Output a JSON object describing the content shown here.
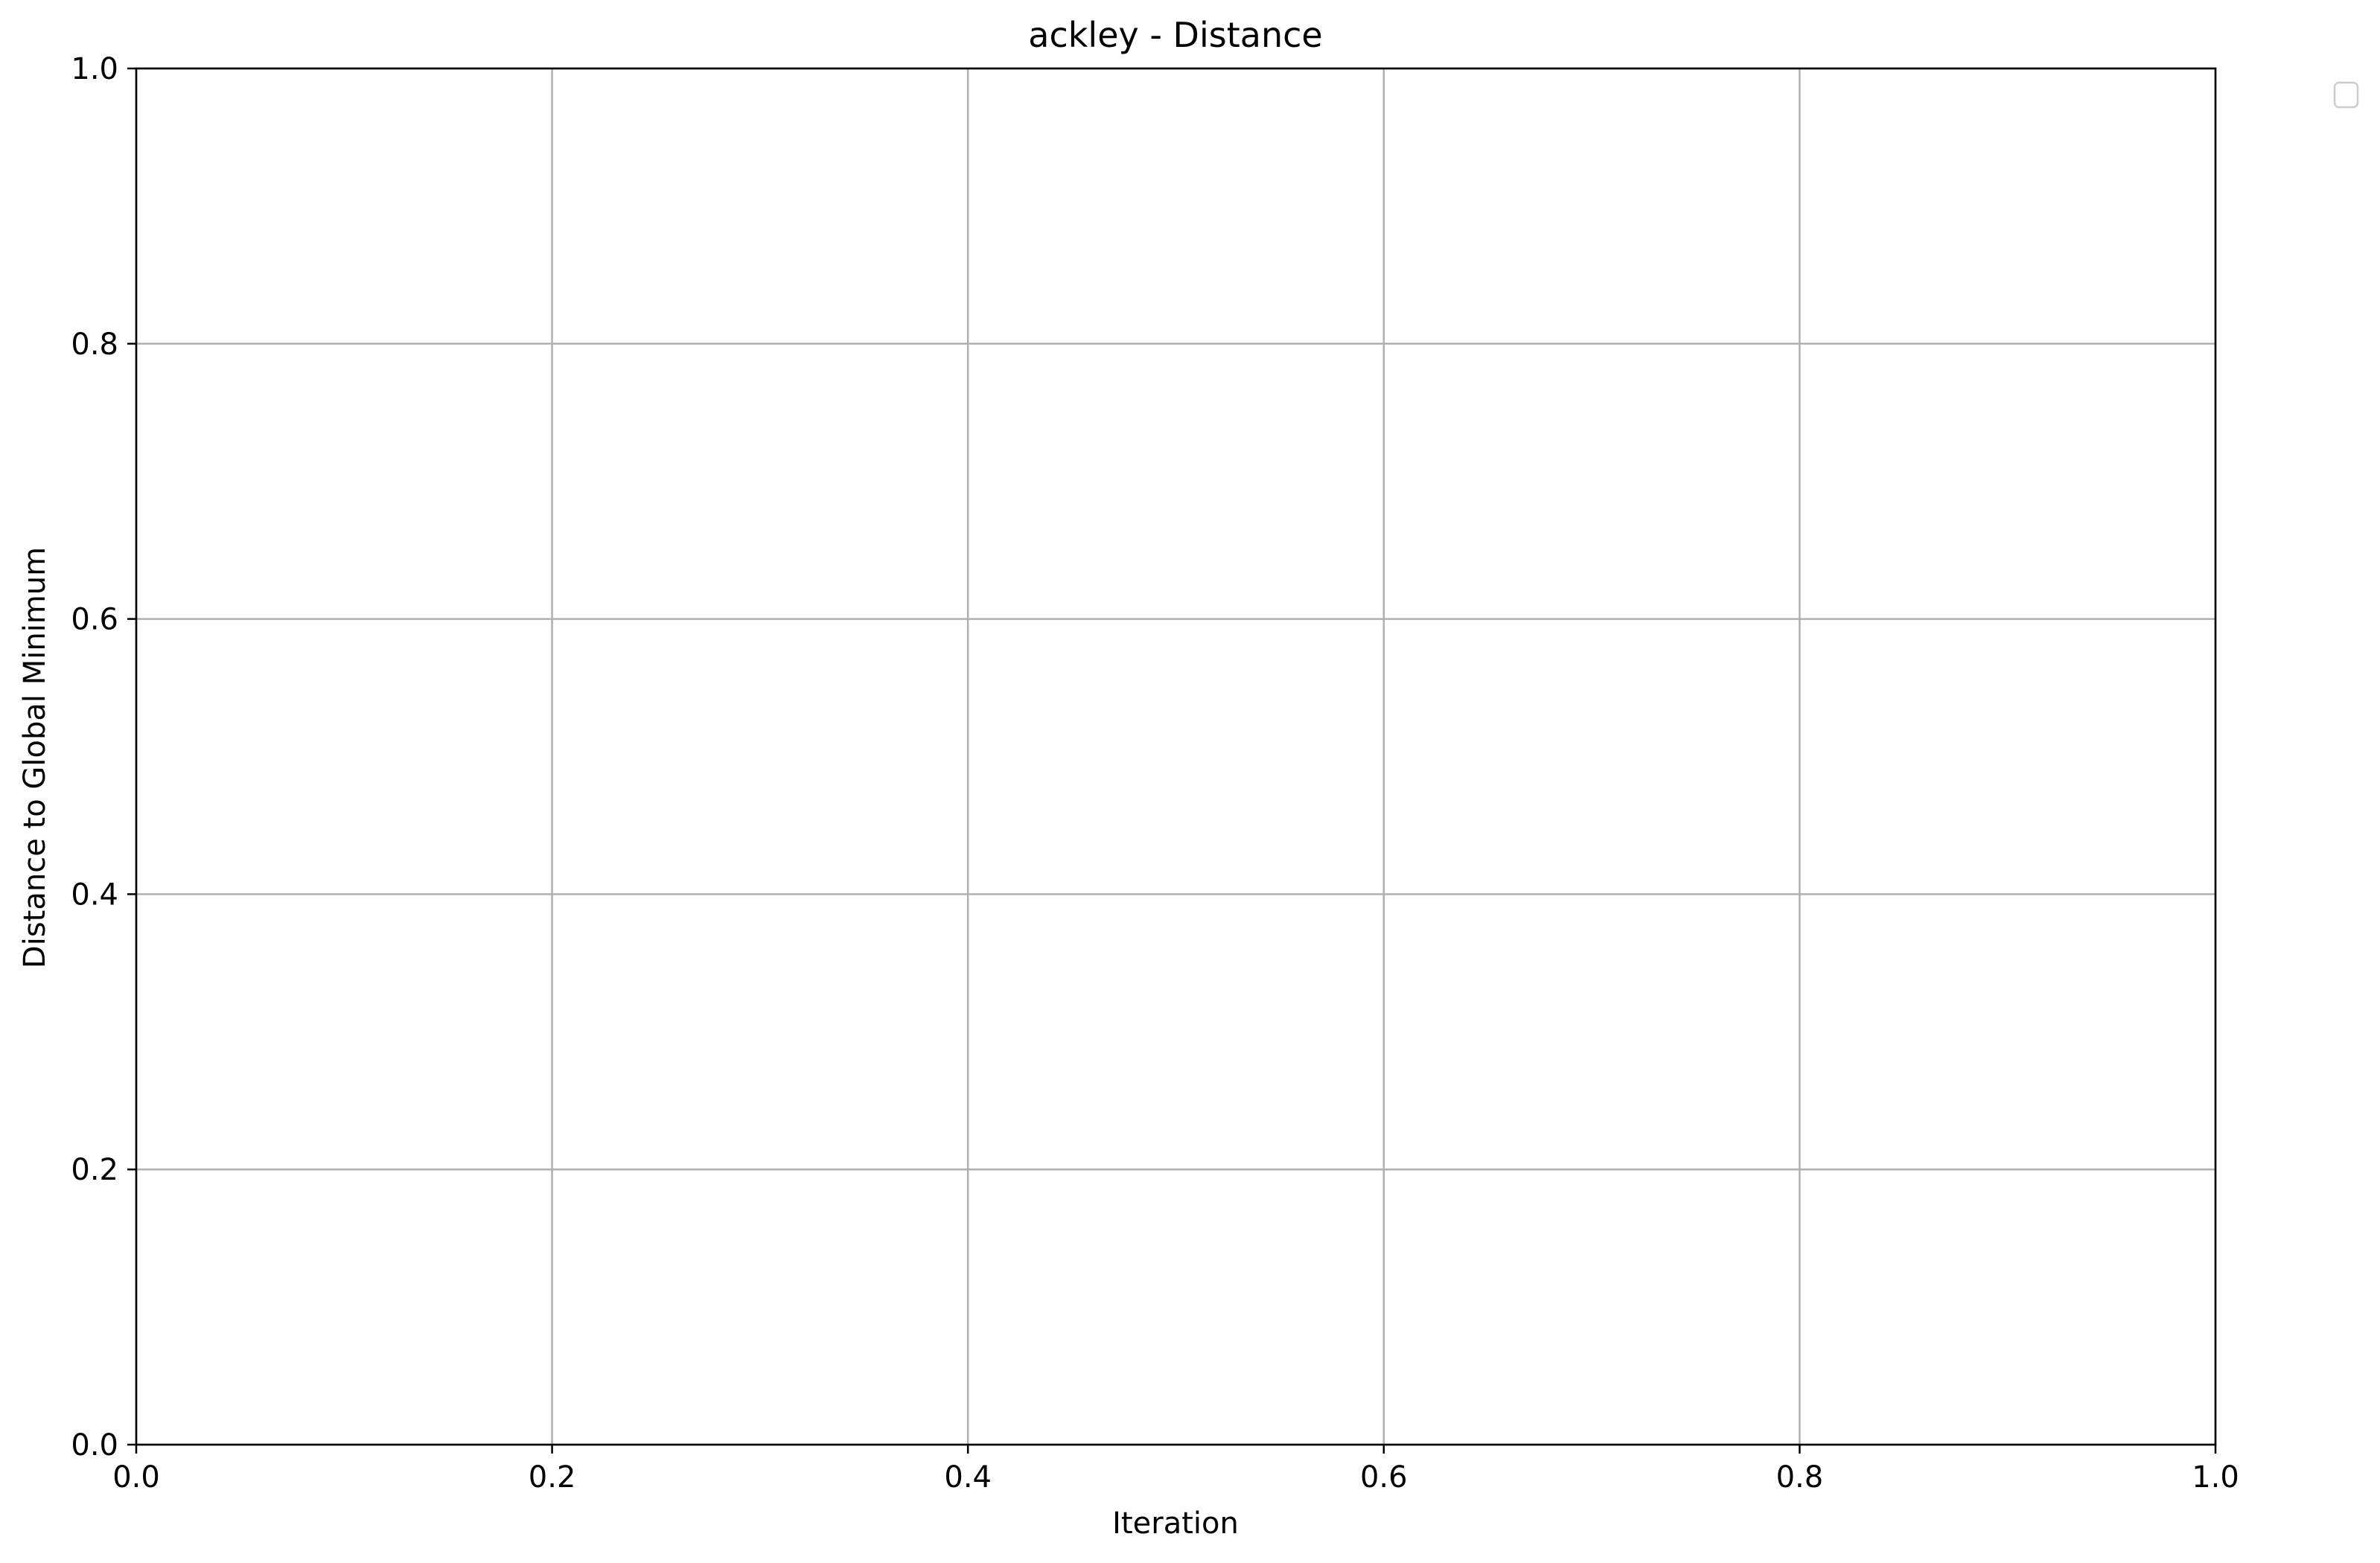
{
  "chart_data": {
    "type": "line",
    "title": "ackley - Distance",
    "xlabel": "Iteration",
    "ylabel": "Distance to Global Minimum",
    "xlim": [
      0.0,
      1.0
    ],
    "ylim": [
      0.0,
      1.0
    ],
    "xticks": [
      0.0,
      0.2,
      0.4,
      0.6,
      0.8,
      1.0
    ],
    "yticks": [
      0.0,
      0.2,
      0.4,
      0.6,
      0.8,
      1.0
    ],
    "xtick_labels": [
      "0.0",
      "0.2",
      "0.4",
      "0.6",
      "0.8",
      "1.0"
    ],
    "ytick_labels": [
      "0.0",
      "0.2",
      "0.4",
      "0.6",
      "0.8",
      "1.0"
    ],
    "grid": true,
    "legend": {
      "placement": "outside top-right",
      "entries": []
    },
    "series": [],
    "colors": {
      "grid": "#b0b0b0",
      "axes": "#000000",
      "legend_border": "#cccccc",
      "background": "#ffffff"
    }
  }
}
